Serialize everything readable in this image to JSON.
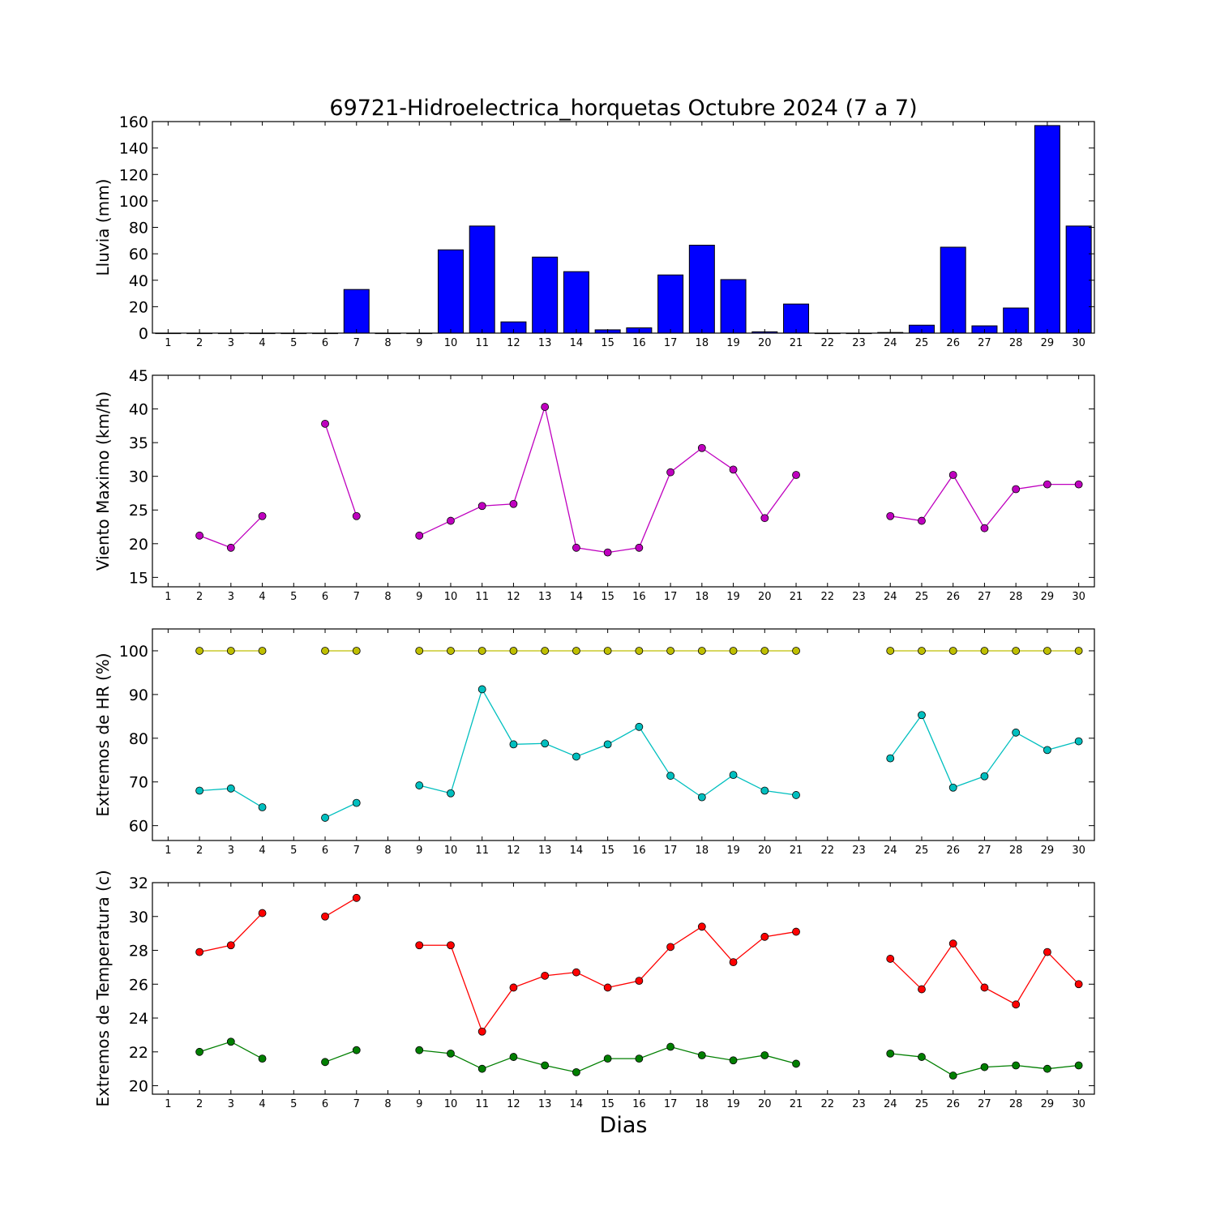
{
  "chart_data": {
    "title": "69721-Hidroelectrica_horquetas Octubre 2024  (7 a 7)",
    "xlabel": "Dias",
    "x": [
      1,
      2,
      3,
      4,
      5,
      6,
      7,
      8,
      9,
      10,
      11,
      12,
      13,
      14,
      15,
      16,
      17,
      18,
      19,
      20,
      21,
      22,
      23,
      24,
      25,
      26,
      27,
      28,
      29,
      30
    ],
    "xlim": [
      0.5,
      30.5
    ],
    "panels": [
      {
        "type": "bar",
        "ylabel": "Lluvia (mm)",
        "ylim": [
          0,
          160
        ],
        "yticks": [
          0,
          20,
          40,
          60,
          80,
          100,
          120,
          140,
          160
        ],
        "series": [
          {
            "color": "#0000ff",
            "values": [
              0,
              0,
              0,
              0,
              0,
              0,
              33,
              0,
              0,
              63,
              81,
              8.5,
              57.5,
              46.5,
              2.5,
              4,
              44,
              66.5,
              40.5,
              1,
              22,
              0,
              0,
              0.5,
              6,
              65,
              5.5,
              19,
              157,
              81
            ]
          }
        ]
      },
      {
        "type": "line",
        "ylabel": "Viento Maximo (km/h)",
        "ylim": [
          13.6,
          45
        ],
        "yticks": [
          15,
          20,
          25,
          30,
          35,
          40,
          45
        ],
        "series": [
          {
            "color": "#bf00bf",
            "values": [
              null,
              21.2,
              19.4,
              24.1,
              null,
              37.8,
              24.1,
              null,
              21.2,
              23.4,
              25.6,
              25.9,
              40.3,
              19.4,
              18.7,
              19.4,
              30.6,
              34.2,
              31,
              23.8,
              30.2,
              null,
              null,
              24.1,
              23.4,
              30.2,
              22.3,
              28.1,
              28.8,
              28.8
            ]
          }
        ]
      },
      {
        "type": "line",
        "ylabel": "Extremos de HR (%)",
        "ylim": [
          56.6,
          105
        ],
        "yticks": [
          60,
          70,
          80,
          90,
          100
        ],
        "series": [
          {
            "color": "#bfbf00",
            "values": [
              null,
              100,
              100,
              100,
              null,
              100,
              100,
              null,
              100,
              100,
              100,
              100,
              100,
              100,
              100,
              100,
              100,
              100,
              100,
              100,
              100,
              null,
              null,
              100,
              100,
              100,
              100,
              100,
              100,
              100
            ]
          },
          {
            "color": "#00bfbf",
            "values": [
              null,
              68,
              68.5,
              64.2,
              null,
              61.8,
              65.2,
              null,
              69.2,
              67.4,
              91.2,
              78.6,
              78.8,
              75.8,
              78.6,
              82.6,
              71.4,
              66.5,
              71.6,
              68,
              67,
              null,
              null,
              75.4,
              85.3,
              68.7,
              71.3,
              81.3,
              77.3,
              79.3
            ]
          }
        ]
      },
      {
        "type": "line",
        "ylabel": "Extremos de Temperatura (c)",
        "ylim": [
          19.5,
          32
        ],
        "yticks": [
          20,
          22,
          24,
          26,
          28,
          30,
          32
        ],
        "series": [
          {
            "color": "#ff0000",
            "values": [
              null,
              27.9,
              28.3,
              30.2,
              null,
              30,
              31.1,
              null,
              28.3,
              28.3,
              23.2,
              25.8,
              26.5,
              26.7,
              25.8,
              26.2,
              28.2,
              29.4,
              27.3,
              28.8,
              29.1,
              null,
              null,
              27.5,
              25.7,
              28.4,
              25.8,
              24.8,
              27.9,
              26
            ]
          },
          {
            "color": "#007f00",
            "values": [
              null,
              22,
              22.6,
              21.6,
              null,
              21.4,
              22.1,
              null,
              22.1,
              21.9,
              21,
              21.7,
              21.2,
              20.8,
              21.6,
              21.6,
              22.3,
              21.8,
              21.5,
              21.8,
              21.3,
              null,
              null,
              21.9,
              21.7,
              20.6,
              21.1,
              21.2,
              21,
              21.2
            ]
          }
        ]
      }
    ]
  }
}
